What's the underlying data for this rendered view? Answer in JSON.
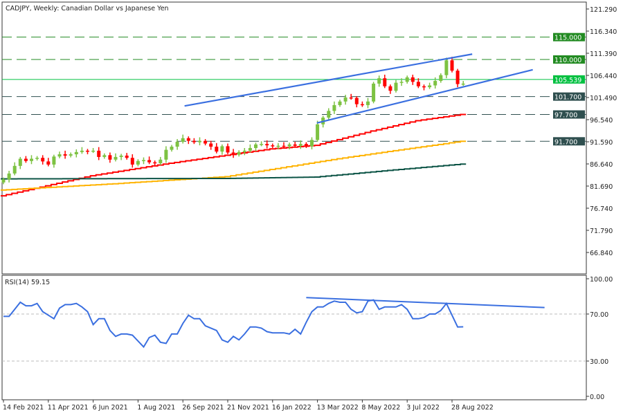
{
  "chart_data": {
    "type": "candlestick",
    "title": "CADJPY, Weekly:  Canadian Dollar vs Japanese Yen",
    "symbol": "CADJPY",
    "timeframe": "Weekly",
    "description": "Canadian Dollar vs Japanese Yen",
    "price_axis": {
      "range": [
        63.0,
        122.5
      ],
      "ticks": [
        "121.290",
        "116.340",
        "111.390",
        "106.440",
        "101.490",
        "96.540",
        "91.590",
        "86.640",
        "81.690",
        "76.740",
        "71.790",
        "66.840"
      ]
    },
    "time_axis": {
      "first_week": "14 Feb 2021",
      "tick_labels": [
        {
          "label": "14 Feb 2021",
          "week": 0
        },
        {
          "label": "11 Apr 2021",
          "week": 8
        },
        {
          "label": "6 Jun 2021",
          "week": 16
        },
        {
          "label": "1 Aug 2021",
          "week": 24
        },
        {
          "label": "26 Sep 2021",
          "week": 32
        },
        {
          "label": "21 Nov 2021",
          "week": 40
        },
        {
          "label": "16 Jan 2022",
          "week": 48
        },
        {
          "label": "13 Mar 2022",
          "week": 56
        },
        {
          "label": "8 May 2022",
          "week": 64
        },
        {
          "label": "3 Jul 2022",
          "week": 72
        },
        {
          "label": "28 Aug 2022",
          "week": 80
        }
      ]
    },
    "open_first": 82.5,
    "closes": [
      83.2,
      84.5,
      86.2,
      87.8,
      87.3,
      87.8,
      88.0,
      87.2,
      86.5,
      88.3,
      88.8,
      88.5,
      88.8,
      89.3,
      89.6,
      89.5,
      89.6,
      88.2,
      88.6,
      87.6,
      88.2,
      88.5,
      88.0,
      86.5,
      87.3,
      87.5,
      87.0,
      86.8,
      87.6,
      89.8,
      90.5,
      91.6,
      92.4,
      91.8,
      91.5,
      91.8,
      91.2,
      90.5,
      89.4,
      90.6,
      89.2,
      88.7,
      89.3,
      89.6,
      90.2,
      91.0,
      91.1,
      90.8,
      90.6,
      90.7,
      90.6,
      91.0,
      90.7,
      91.1,
      90.6,
      92.0,
      95.5,
      97.0,
      98.5,
      99.8,
      100.6,
      101.5,
      101.4,
      100.0,
      99.8,
      100.6,
      104.6,
      105.8,
      104.0,
      103.0,
      104.8,
      105.0,
      106.0,
      105.0,
      104.0,
      103.8,
      104.2,
      105.2,
      106.5,
      109.8,
      107.5,
      104.5,
      104.6
    ],
    "bull_color": "#7dc242",
    "bear_color": "#ff0000",
    "moving_averages": [
      {
        "name": "MA red",
        "color": "#ff0000",
        "points": [
          [
            0,
            79.5
          ],
          [
            16,
            84.0
          ],
          [
            30,
            86.8
          ],
          [
            48,
            90.0
          ],
          [
            56,
            90.8
          ],
          [
            66,
            94.0
          ],
          [
            74,
            96.3
          ],
          [
            82,
            97.7
          ]
        ]
      },
      {
        "name": "MA orange",
        "color": "#ffb300",
        "points": [
          [
            0,
            80.8
          ],
          [
            20,
            82.2
          ],
          [
            40,
            83.8
          ],
          [
            50,
            85.8
          ],
          [
            60,
            87.8
          ],
          [
            70,
            89.6
          ],
          [
            82,
            91.7
          ]
        ]
      },
      {
        "name": "MA dark green",
        "color": "#0b5345",
        "points": [
          [
            0,
            83.3
          ],
          [
            40,
            83.4
          ],
          [
            56,
            83.7
          ],
          [
            70,
            85.3
          ],
          [
            82,
            86.6
          ]
        ]
      }
    ],
    "trend_channel": [
      {
        "name": "upper",
        "points": [
          [
            32.3,
            99.6
          ],
          [
            83.6,
            111.2
          ]
        ]
      },
      {
        "name": "lower",
        "points": [
          [
            55.9,
            95.8
          ],
          [
            94.4,
            107.7
          ]
        ]
      }
    ],
    "levels": [
      {
        "value": "115.000",
        "style": "dashed",
        "color": "#228b22"
      },
      {
        "value": "110.000",
        "style": "dashed",
        "color": "#228b22"
      },
      {
        "value": "105.539",
        "style": "solid",
        "color": "#00c040"
      },
      {
        "value": "101.700",
        "style": "dashed",
        "color": "#2f4f4f"
      },
      {
        "value": "97.700",
        "style": "dashed",
        "color": "#2f4f4f"
      },
      {
        "value": "91.700",
        "style": "dashed",
        "color": "#2f4f4f"
      }
    ],
    "rsi": {
      "label": "RSI(14) 59.15",
      "range": [
        0,
        100
      ],
      "ticks": [
        "100.00",
        "70.00",
        "30.00",
        "0.00"
      ],
      "levels": [
        70,
        30
      ],
      "color": "#3a6fe0",
      "values": [
        68,
        68,
        74,
        80,
        77,
        77,
        79,
        72,
        69,
        66,
        75,
        78,
        78,
        79,
        76,
        72,
        61,
        66,
        66,
        56,
        51,
        53,
        53,
        52,
        47,
        42,
        50,
        52,
        46,
        45,
        53,
        53,
        62,
        69,
        66,
        66,
        60,
        58,
        56,
        48,
        46,
        51,
        48,
        53,
        59,
        59,
        58,
        55,
        54,
        54,
        54,
        53,
        57,
        53,
        63,
        72,
        76,
        76,
        79,
        81,
        80,
        80,
        74,
        71,
        72,
        81,
        82,
        74,
        76,
        76,
        76,
        78,
        74,
        66,
        66,
        67,
        70,
        70,
        73,
        79,
        69,
        59,
        59.15
      ],
      "trendline": [
        [
          54,
          84
        ],
        [
          96.5,
          75.5
        ]
      ]
    }
  }
}
